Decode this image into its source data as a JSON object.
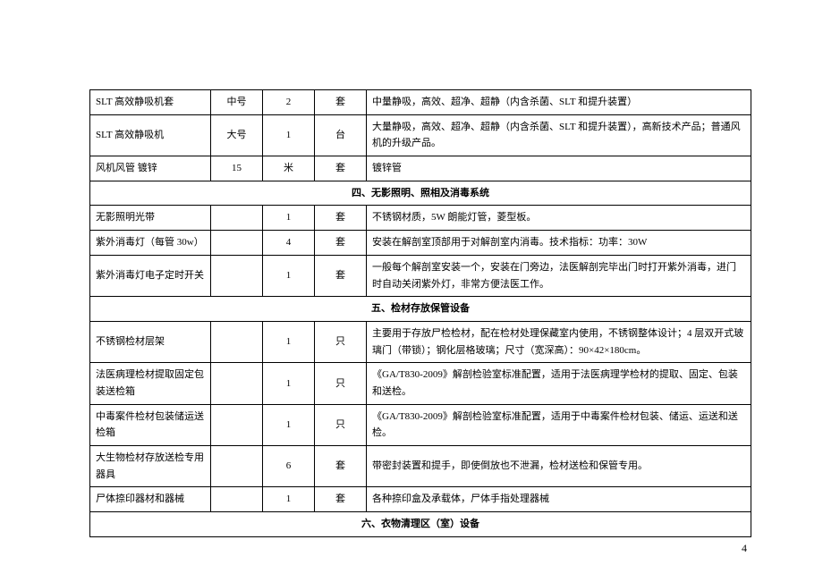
{
  "table": {
    "rows": [
      {
        "name": "SLT 高效静吸机套",
        "spec": "中号",
        "qty": "2",
        "unit": "套",
        "desc": "中量静吸，高效、超净、超静（内含杀菌、SLT 和提升装置）"
      },
      {
        "name": "SLT 高效静吸机",
        "spec": "大号",
        "qty": "1",
        "unit": "台",
        "desc": "大量静吸，高效、超净、超静（内含杀菌、SLT 和提升装置），高新技术产品；普通风机的升级产品。"
      },
      {
        "name": "风机风管  镀锌",
        "spec": "15",
        "qty": "米",
        "unit": "套",
        "desc": "镀锌管"
      }
    ],
    "section4": "四、无影照明、照相及消毒系统",
    "rows4": [
      {
        "name": "无影照明光带",
        "spec": "",
        "qty": "1",
        "unit": "套",
        "desc": "不锈钢材质，5W 朗能灯管，菱型板。"
      },
      {
        "name": "紫外消毒灯（每管 30w）",
        "spec": "",
        "qty": "4",
        "unit": "套",
        "desc": "安装在解剖室顶部用于对解剖室内消毒。技术指标：功率：30W"
      },
      {
        "name": "紫外消毒灯电子定时开关",
        "spec": "",
        "qty": "1",
        "unit": "套",
        "desc": "一般每个解剖室安装一个，安装在门旁边，法医解剖完毕出门时打开紫外消毒，进门时自动关闭紫外灯，非常方便法医工作。"
      }
    ],
    "section5": "五、检材存放保管设备",
    "rows5": [
      {
        "name": "不锈钢检材层架",
        "spec": "",
        "qty": "1",
        "unit": "只",
        "desc": "主要用于存放尸检检材，配在检材处理保藏室内使用，不锈钢整体设计；4 层双开式玻璃门（带锁）；钢化层格玻璃；尺寸（宽深高）：90×42×180cm。"
      },
      {
        "name": "法医病理检材提取固定包装送检箱",
        "spec": "",
        "qty": "1",
        "unit": "只",
        "desc": "《GA/T830-2009》解剖检验室标准配置，适用于法医病理学检材的提取、固定、包装和送检。"
      },
      {
        "name": "中毒案件检材包装储运送检箱",
        "spec": "",
        "qty": "1",
        "unit": "只",
        "desc": "《GA/T830-2009》解剖检验室标准配置，适用于中毒案件检材包装、储运、运送和送检。"
      },
      {
        "name": "大生物检材存放送检专用器具",
        "spec": "",
        "qty": "6",
        "unit": "套",
        "desc": "带密封装置和提手，即使倒放也不泄漏，检材送检和保管专用。"
      },
      {
        "name": "尸体捺印器材和器械",
        "spec": "",
        "qty": "1",
        "unit": "套",
        "desc": "各种捺印盒及承载体，尸体手指处理器械"
      }
    ],
    "section6": "六、衣物清理区（室）设备"
  },
  "pageNum": "4"
}
